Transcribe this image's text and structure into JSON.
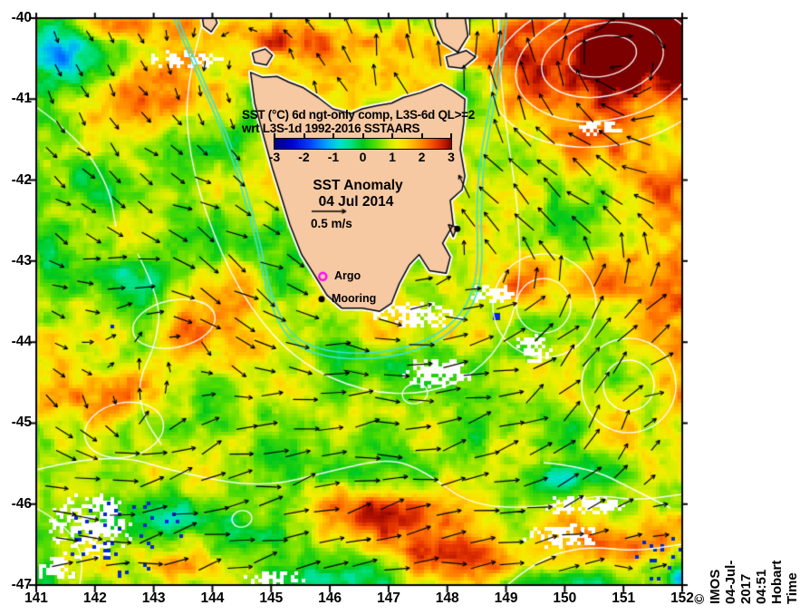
{
  "header": {
    "title_line1": "SST (°C) 6d ngt-only comp, L3S-6d QL>=2",
    "title_line2": "wrt L3S-1d 1992-2016 SSTAARS"
  },
  "annotation": {
    "line1": "SST Anomaly",
    "line2": "04 Jul 2014",
    "scale_label": "0.5 m/s"
  },
  "credit": "© IMOS 04-Jul-2017 04:51 Hobart Time",
  "colorbar": {
    "tick_labels": [
      "-3",
      "-2",
      "-1",
      "0",
      "1",
      "2",
      "3"
    ],
    "min": -3,
    "max": 3,
    "stops": [
      [
        -3,
        "#000080"
      ],
      [
        -2.4,
        "#0000D0"
      ],
      [
        -1.8,
        "#0040FF"
      ],
      [
        -1.2,
        "#00A8FF"
      ],
      [
        -0.8,
        "#00E0D0"
      ],
      [
        -0.4,
        "#00E080"
      ],
      [
        0,
        "#00C818"
      ],
      [
        0.45,
        "#58DC00"
      ],
      [
        0.9,
        "#C8EC00"
      ],
      [
        1.15,
        "#F0F000"
      ],
      [
        1.45,
        "#FFD800"
      ],
      [
        1.8,
        "#FFA800"
      ],
      [
        2.15,
        "#FF7000"
      ],
      [
        2.5,
        "#E83800"
      ],
      [
        2.8,
        "#B81400"
      ],
      [
        3,
        "#7C0000"
      ]
    ]
  },
  "axes": {
    "x": {
      "min": 141,
      "max": 152,
      "ticks": [
        "141",
        "142",
        "143",
        "144",
        "145",
        "146",
        "147",
        "148",
        "149",
        "150",
        "151",
        "152"
      ]
    },
    "y": {
      "min": -47,
      "max": -40,
      "ticks": [
        "-40",
        "-41",
        "-42",
        "-43",
        "-44",
        "-45",
        "-46",
        "-47"
      ]
    }
  },
  "markers": {
    "argo": {
      "label": "Argo",
      "lon": 145.88,
      "lat": -43.19,
      "color": "#FF00FF"
    },
    "mooring": {
      "label": "Mooring",
      "lon": 145.86,
      "lat": -43.47,
      "color": "#000000"
    },
    "station": {
      "lon": 148.17,
      "lat": -42.6,
      "color": "#000000"
    }
  },
  "map": {
    "land_color": "#F6C9A2",
    "coast_color": "#000000",
    "contour_color": "#FFFFFF",
    "shelf_line_color": "#3CE2D8",
    "arrow_color": "#000000",
    "speckle_color": "#0028D0",
    "land_polygons": {
      "tasmania": [
        [
          144.65,
          -40.67
        ],
        [
          144.85,
          -40.73
        ],
        [
          145.1,
          -40.72
        ],
        [
          145.3,
          -40.79
        ],
        [
          145.55,
          -40.86
        ],
        [
          145.8,
          -40.98
        ],
        [
          146.05,
          -41.12
        ],
        [
          146.36,
          -41.18
        ],
        [
          146.55,
          -41.12
        ],
        [
          146.8,
          -41.08
        ],
        [
          147.05,
          -41.05
        ],
        [
          147.25,
          -40.98
        ],
        [
          147.55,
          -40.92
        ],
        [
          147.9,
          -40.82
        ],
        [
          148.1,
          -40.9
        ],
        [
          148.3,
          -41.0
        ],
        [
          148.28,
          -41.3
        ],
        [
          148.22,
          -41.62
        ],
        [
          148.3,
          -41.95
        ],
        [
          148.25,
          -42.12
        ],
        [
          148.05,
          -42.25
        ],
        [
          148.1,
          -42.55
        ],
        [
          147.92,
          -42.78
        ],
        [
          148.05,
          -42.95
        ],
        [
          147.98,
          -43.15
        ],
        [
          147.7,
          -43.12
        ],
        [
          147.52,
          -42.92
        ],
        [
          147.35,
          -43.05
        ],
        [
          147.18,
          -43.28
        ],
        [
          147.05,
          -43.52
        ],
        [
          146.85,
          -43.62
        ],
        [
          146.55,
          -43.58
        ],
        [
          146.2,
          -43.58
        ],
        [
          145.95,
          -43.42
        ],
        [
          145.78,
          -43.22
        ],
        [
          145.52,
          -42.92
        ],
        [
          145.32,
          -42.55
        ],
        [
          145.18,
          -42.22
        ],
        [
          145.02,
          -41.85
        ],
        [
          144.85,
          -41.4
        ],
        [
          144.72,
          -41.05
        ]
      ],
      "king_island": [
        [
          143.82,
          -39.95
        ],
        [
          144.02,
          -39.93
        ],
        [
          144.08,
          -40.06
        ],
        [
          143.98,
          -40.17
        ],
        [
          143.85,
          -40.1
        ]
      ],
      "hunter_group": [
        [
          144.68,
          -40.43
        ],
        [
          144.9,
          -40.38
        ],
        [
          145.02,
          -40.46
        ],
        [
          144.92,
          -40.58
        ],
        [
          144.72,
          -40.55
        ]
      ],
      "flinders_island": [
        [
          147.78,
          -39.95
        ],
        [
          148.05,
          -39.9
        ],
        [
          148.3,
          -39.98
        ],
        [
          148.35,
          -40.22
        ],
        [
          148.18,
          -40.42
        ],
        [
          147.92,
          -40.3
        ],
        [
          147.8,
          -40.1
        ]
      ],
      "cape_barren_island": [
        [
          147.98,
          -40.48
        ],
        [
          148.32,
          -40.4
        ],
        [
          148.48,
          -40.48
        ],
        [
          148.25,
          -40.62
        ],
        [
          148.02,
          -40.6
        ]
      ],
      "maria_island": [
        [
          148.02,
          -42.55
        ],
        [
          148.16,
          -42.58
        ],
        [
          148.1,
          -42.7
        ]
      ]
    },
    "warm_cool_features": [
      [
        672,
        58,
        120,
        58,
        2.8
      ],
      [
        753,
        30,
        60,
        45,
        2.5
      ],
      [
        750,
        120,
        40,
        60,
        0.9
      ],
      [
        168,
        100,
        65,
        40,
        1.1
      ],
      [
        125,
        28,
        45,
        14,
        1.3
      ],
      [
        300,
        40,
        110,
        25,
        0.8
      ],
      [
        705,
        195,
        85,
        65,
        1.0
      ],
      [
        748,
        385,
        55,
        85,
        1.2
      ],
      [
        622,
        300,
        55,
        40,
        0.9
      ],
      [
        523,
        265,
        35,
        70,
        0.9
      ],
      [
        205,
        385,
        28,
        60,
        0.9
      ],
      [
        130,
        440,
        90,
        35,
        1.1
      ],
      [
        430,
        562,
        120,
        40,
        1.5
      ],
      [
        185,
        612,
        75,
        30,
        1.9
      ],
      [
        520,
        610,
        80,
        30,
        1.6
      ],
      [
        700,
        592,
        65,
        28,
        1.5
      ],
      [
        82,
        62,
        58,
        40,
        -1.9
      ],
      [
        55,
        310,
        28,
        45,
        -1.1
      ],
      [
        130,
        300,
        45,
        25,
        -0.9
      ],
      [
        212,
        432,
        55,
        45,
        -1.2
      ],
      [
        160,
        582,
        50,
        55,
        -2.2
      ],
      [
        252,
        600,
        45,
        40,
        -1.5
      ],
      [
        360,
        638,
        70,
        18,
        -1.1
      ],
      [
        628,
        212,
        65,
        45,
        -0.9
      ],
      [
        600,
        528,
        55,
        25,
        -1.5
      ],
      [
        638,
        638,
        55,
        18,
        -1.5
      ],
      [
        752,
        638,
        16,
        14,
        -2.2
      ],
      [
        420,
        395,
        60,
        25,
        -0.8
      ],
      [
        282,
        108,
        26,
        22,
        -1.2
      ],
      [
        96,
        180,
        40,
        30,
        -0.5
      ],
      [
        40,
        640,
        30,
        20,
        -1.0
      ]
    ],
    "white_voids": [
      [
        205,
        63,
        42,
        12
      ],
      [
        455,
        345,
        55,
        16
      ],
      [
        540,
        322,
        28,
        12
      ],
      [
        98,
        578,
        48,
        38
      ],
      [
        60,
        625,
        25,
        15
      ],
      [
        618,
        588,
        45,
        15
      ],
      [
        588,
        380,
        22,
        20
      ],
      [
        480,
        410,
        40,
        18
      ],
      [
        660,
        140,
        25,
        10
      ],
      [
        300,
        636,
        35,
        10
      ],
      [
        640,
        555,
        50,
        12
      ]
    ],
    "speckle_zones": [
      [
        140,
        590,
        70,
        45,
        0.06
      ],
      [
        725,
        612,
        28,
        28,
        0.1
      ],
      [
        132,
        364,
        22,
        10,
        0.12
      ],
      [
        545,
        346,
        5,
        5,
        1.0
      ]
    ],
    "contour_paths": [
      [
        [
          225,
          20
        ],
        [
          205,
          90
        ],
        [
          208,
          170
        ],
        [
          235,
          260
        ],
        [
          275,
          340
        ],
        [
          330,
          400
        ],
        [
          400,
          432
        ],
        [
          470,
          435
        ],
        [
          525,
          412
        ],
        [
          560,
          370
        ],
        [
          575,
          310
        ],
        [
          572,
          230
        ],
        [
          560,
          150
        ],
        [
          552,
          80
        ],
        [
          550,
          20
        ]
      ],
      [
        [
          40,
          118
        ],
        [
          85,
          150
        ],
        [
          120,
          205
        ],
        [
          128,
          250
        ]
      ],
      [
        [
          152,
          280
        ],
        [
          178,
          330
        ],
        [
          172,
          380
        ],
        [
          152,
          420
        ],
        [
          158,
          460
        ],
        [
          178,
          490
        ]
      ],
      [
        [
          40,
          518
        ],
        [
          120,
          498
        ],
        [
          200,
          522
        ],
        [
          290,
          538
        ],
        [
          370,
          518
        ],
        [
          430,
          505
        ],
        [
          470,
          520
        ],
        [
          520,
          558
        ],
        [
          600,
          560
        ],
        [
          660,
          545
        ],
        [
          700,
          552
        ],
        [
          753,
          545
        ]
      ],
      [
        [
          40,
          560
        ],
        [
          75,
          580
        ],
        [
          92,
          615
        ],
        [
          88,
          645
        ]
      ],
      [
        [
          560,
          645
        ],
        [
          595,
          615
        ],
        [
          650,
          602
        ],
        [
          700,
          608
        ],
        [
          753,
          600
        ]
      ],
      [
        [
          600,
          510
        ],
        [
          650,
          515
        ],
        [
          700,
          540
        ],
        [
          740,
          560
        ]
      ]
    ],
    "contour_ellipses": [
      [
        665,
        62,
        38,
        22
      ],
      [
        665,
        66,
        68,
        40
      ],
      [
        668,
        70,
        100,
        62
      ],
      [
        672,
        76,
        132,
        84
      ],
      [
        600,
        337,
        30,
        30
      ],
      [
        601,
        337,
        57,
        57
      ],
      [
        694,
        425,
        28,
        28
      ],
      [
        694,
        425,
        52,
        52
      ],
      [
        192,
        357,
        46,
        26
      ],
      [
        137,
        474,
        44,
        30
      ],
      [
        458,
        434,
        14,
        11
      ],
      [
        267,
        572,
        11,
        9
      ]
    ],
    "shelf_line": [
      [
        196,
        20
      ],
      [
        225,
        90
      ],
      [
        252,
        150
      ],
      [
        272,
        210
      ],
      [
        288,
        270
      ],
      [
        300,
        330
      ],
      [
        322,
        372
      ],
      [
        360,
        388
      ],
      [
        410,
        390
      ],
      [
        455,
        382
      ],
      [
        495,
        362
      ],
      [
        520,
        330
      ],
      [
        528,
        290
      ],
      [
        526,
        240
      ],
      [
        528,
        190
      ],
      [
        536,
        140
      ],
      [
        546,
        90
      ],
      [
        552,
        45
      ],
      [
        554,
        20
      ]
    ],
    "vortices": [
      [
        665,
        62,
        1.9,
        95
      ],
      [
        600,
        335,
        -1.1,
        70
      ],
      [
        694,
        425,
        1.0,
        62
      ],
      [
        195,
        358,
        0.7,
        55
      ],
      [
        137,
        474,
        -0.7,
        55
      ],
      [
        400,
        240,
        -0.85,
        230
      ],
      [
        480,
        700,
        0.5,
        200
      ]
    ],
    "ambient_flow": [
      0.45,
      -0.12
    ]
  }
}
